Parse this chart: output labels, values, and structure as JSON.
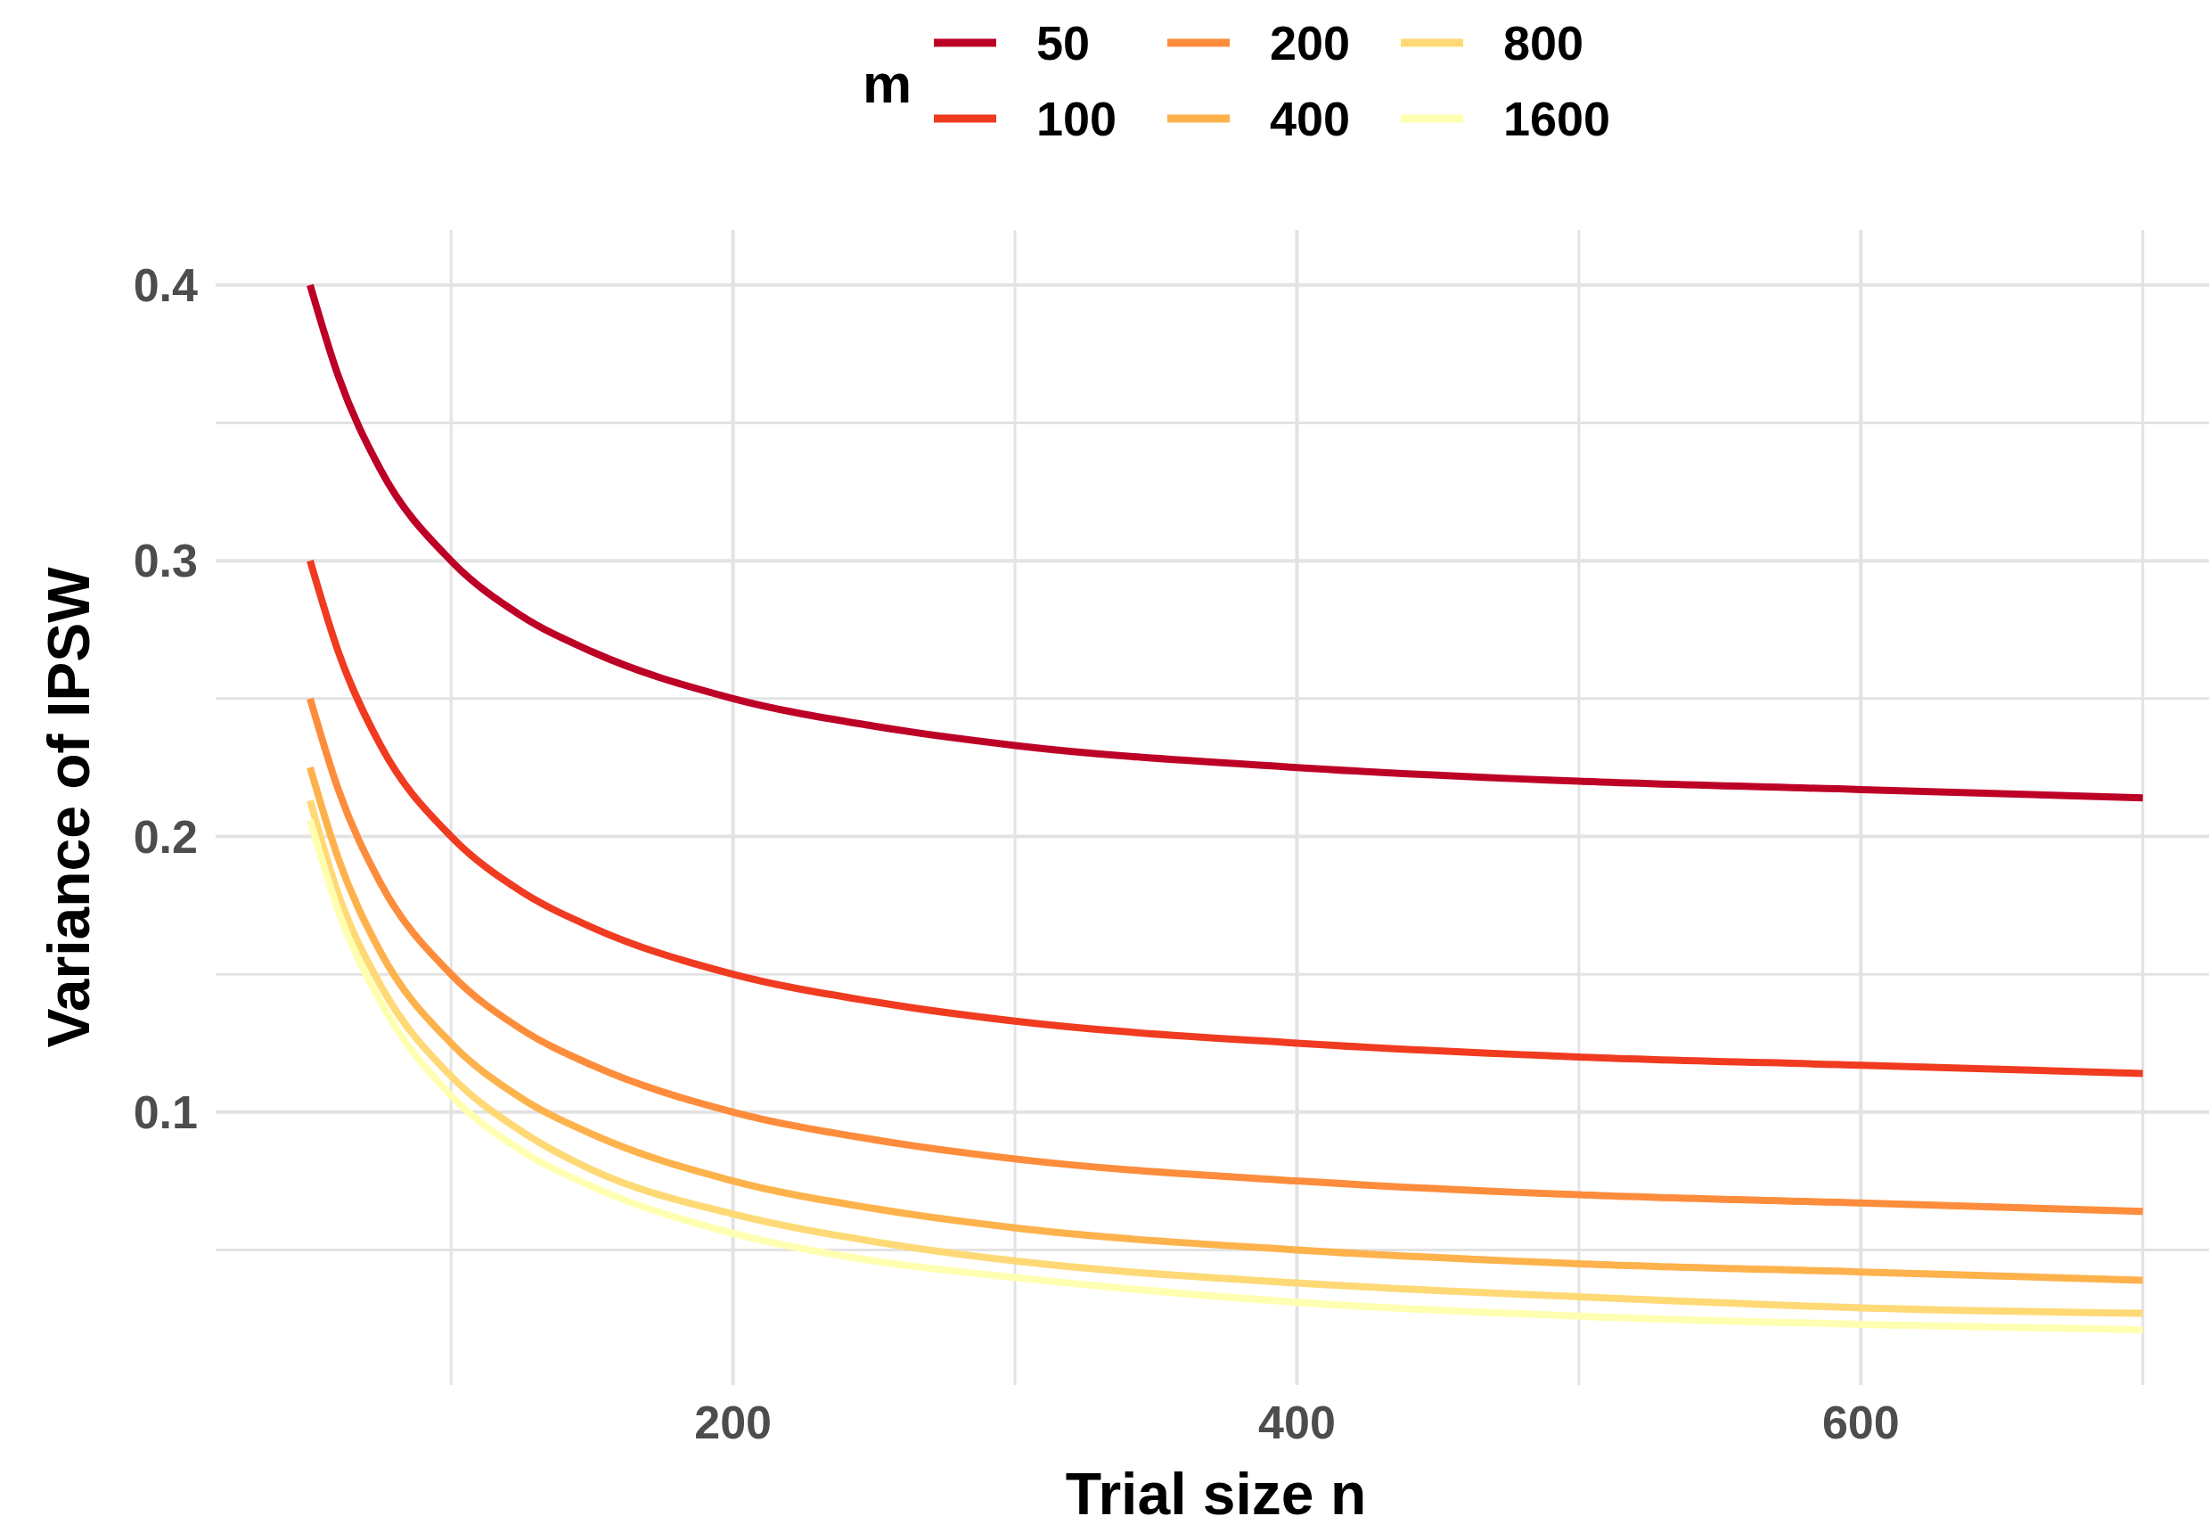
{
  "chart_data": {
    "type": "line",
    "xlabel": "Trial size n",
    "ylabel": "Variance of IPSW",
    "legend_title": "m",
    "legend": "top",
    "grid": true,
    "x": [
      50,
      60,
      75,
      100,
      125,
      150,
      200,
      250,
      300,
      400,
      500,
      600,
      700
    ],
    "xlim": [
      16.5,
      726
    ],
    "ylim": [
      0.001,
      0.42
    ],
    "xticks": [
      {
        "value": 100,
        "label": null
      },
      200,
      {
        "value": 300,
        "label": null
      },
      400,
      {
        "value": 500,
        "label": null
      },
      600,
      {
        "value": 700,
        "label": null
      }
    ],
    "yticks": [
      {
        "value": 0.05,
        "label": null
      },
      0.1,
      {
        "value": 0.15,
        "label": null
      },
      0.2,
      {
        "value": 0.25,
        "label": null
      },
      0.3,
      {
        "value": 0.35,
        "label": null
      },
      0.4
    ],
    "series": [
      {
        "name": "50",
        "color": "#bd0026",
        "values": [
          0.4,
          0.367,
          0.333,
          0.3,
          0.28,
          0.267,
          0.25,
          0.24,
          0.233,
          0.225,
          0.22,
          0.217,
          0.214
        ]
      },
      {
        "name": "100",
        "color": "#f03b20",
        "values": [
          0.3,
          0.267,
          0.233,
          0.2,
          0.18,
          0.167,
          0.15,
          0.14,
          0.133,
          0.125,
          0.12,
          0.117,
          0.114
        ]
      },
      {
        "name": "200",
        "color": "#fd8d3c",
        "values": [
          0.25,
          0.217,
          0.183,
          0.15,
          0.13,
          0.117,
          0.1,
          0.09,
          0.083,
          0.075,
          0.07,
          0.067,
          0.064
        ]
      },
      {
        "name": "400",
        "color": "#feb24c",
        "values": [
          0.225,
          0.192,
          0.158,
          0.125,
          0.105,
          0.092,
          0.075,
          0.065,
          0.058,
          0.05,
          0.045,
          0.042,
          0.039
        ]
      },
      {
        "name": "800",
        "color": "#fed976",
        "values": [
          0.213,
          0.179,
          0.146,
          0.113,
          0.093,
          0.079,
          0.063,
          0.053,
          0.046,
          0.038,
          0.033,
          0.029,
          0.027
        ]
      },
      {
        "name": "1600",
        "color": "#ffffb2",
        "values": [
          0.206,
          0.173,
          0.14,
          0.106,
          0.086,
          0.073,
          0.056,
          0.046,
          0.04,
          0.031,
          0.026,
          0.023,
          0.021
        ]
      }
    ]
  }
}
